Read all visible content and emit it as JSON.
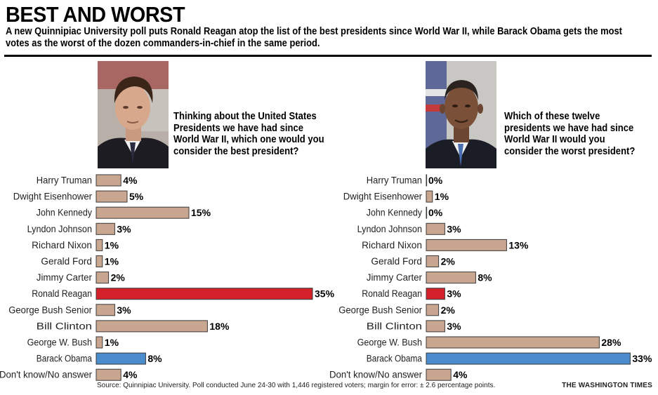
{
  "headline": "BEST AND WORST",
  "subhead": "A new Quinnipiac University poll puts Ronald Reagan atop the list of the best presidents since World War II, while Barack Obama gets the most votes as the worst of the dozen commanders-in-chief in the same period.",
  "left_photo": "Ronald Reagan portrait",
  "right_photo": "Barack Obama portrait",
  "source": "Source: Quinnipiac University. Poll conducted June 24-30 with 1,446 registered voters; margin for error: ± 2.6 percentage points.",
  "credit": "THE WASHINGTON TIMES",
  "colors": {
    "bar_default": "#c9a68f",
    "bar_reagan": "#d3222a",
    "bar_obama": "#4b8dcc",
    "bar_stroke": "#3a3a3a"
  },
  "chart_data": [
    {
      "type": "bar",
      "orientation": "horizontal",
      "title": "Thinking about the United States Presidents we have had since World War II, which one would you consider the best president?",
      "categories": [
        "Harry Truman",
        "Dwight Eisenhower",
        "John Kennedy",
        "Lyndon Johnson",
        "Richard Nixon",
        "Gerald Ford",
        "Jimmy Carter",
        "Ronald Reagan",
        "George Bush Senior",
        "Bill Clinton",
        "George W. Bush",
        "Barack Obama",
        "Don't know/No answer"
      ],
      "values": [
        4,
        5,
        15,
        3,
        1,
        1,
        2,
        35,
        3,
        18,
        1,
        8,
        4
      ],
      "labels": [
        "4%",
        "5%",
        "15%",
        "3%",
        "1%",
        "1%",
        "2%",
        "35%",
        "3%",
        "18%",
        "1%",
        "8%",
        "4%"
      ],
      "highlight": {
        "Ronald Reagan": "red",
        "Barack Obama": "blue"
      },
      "unit": "%"
    },
    {
      "type": "bar",
      "orientation": "horizontal",
      "title": "Which of these twelve presidents we have had since World War II would you consider the worst president?",
      "categories": [
        "Harry Truman",
        "Dwight Eisenhower",
        "John Kennedy",
        "Lyndon Johnson",
        "Richard Nixon",
        "Gerald Ford",
        "Jimmy Carter",
        "Ronald Reagan",
        "George Bush Senior",
        "Bill Clinton",
        "George W. Bush",
        "Barack Obama",
        "Don't know/No answer"
      ],
      "values": [
        0,
        1,
        0,
        3,
        13,
        2,
        8,
        3,
        2,
        3,
        28,
        33,
        4
      ],
      "labels": [
        "0%",
        "1%",
        "0%",
        "3%",
        "13%",
        "2%",
        "8%",
        "3%",
        "2%",
        "3%",
        "28%",
        "33%",
        "4%"
      ],
      "highlight": {
        "Ronald Reagan": "red",
        "Barack Obama": "blue"
      },
      "unit": "%"
    }
  ]
}
